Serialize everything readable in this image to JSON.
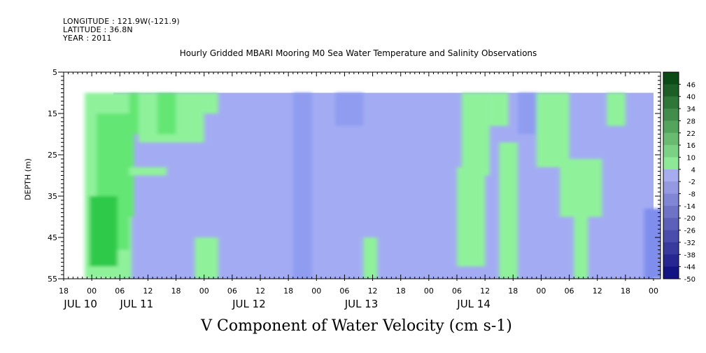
{
  "header": {
    "longitude": "LONGITUDE : 121.9W(-121.9)",
    "latitude": "LATITUDE : 36.8N",
    "year": "YEAR : 2011"
  },
  "chart_data": {
    "type": "heatmap",
    "title": "Hourly Gridded MBARI Mooring M0 Sea Water Temperature and Salinity Observations",
    "ylabel": "DEPTH (m)",
    "variable_label": "V Component of Water Velocity (cm s-1)",
    "y_axis": {
      "min": 5,
      "max": 55,
      "inverted": true,
      "ticks": [
        "5",
        "15",
        "25",
        "35",
        "45",
        "55"
      ]
    },
    "x_axis": {
      "hour_ticks": [
        "18",
        "00",
        "06",
        "12",
        "18",
        "00",
        "06",
        "12",
        "18",
        "00",
        "06",
        "12",
        "18",
        "00",
        "06",
        "12",
        "18",
        "00",
        "06",
        "12",
        "18",
        "00"
      ],
      "day_labels": [
        "JUL 10",
        "JUL 11",
        "JUL 12",
        "JUL 13",
        "JUL 14"
      ]
    },
    "data_depth_range": [
      10,
      55
    ],
    "colorbar": {
      "levels": [
        "46",
        "40",
        "34",
        "28",
        "22",
        "16",
        "10",
        "4",
        "-2",
        "-8",
        "-14",
        "-20",
        "-26",
        "-32",
        "-38",
        "-44",
        "-50"
      ]
    },
    "colors": {
      "positive": "#8ff29b",
      "negative": "#a3acf3"
    }
  }
}
